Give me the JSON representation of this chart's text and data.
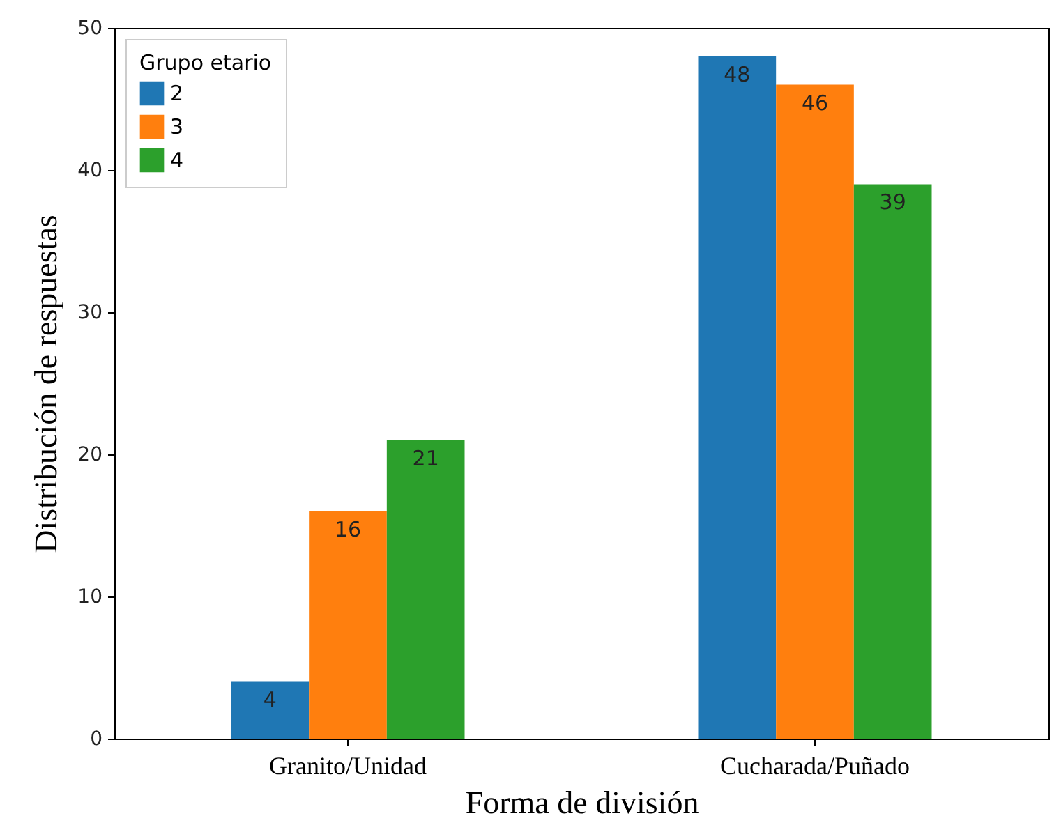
{
  "chart_data": {
    "type": "bar",
    "xlabel": "Forma de división",
    "ylabel": "Distribución de respuestas",
    "legend_title": "Grupo etario",
    "categories": [
      "Granito/Unidad",
      "Cucharada/Puñado"
    ],
    "series": [
      {
        "name": "2",
        "color": "#1f77b4",
        "values": [
          4,
          48
        ]
      },
      {
        "name": "3",
        "color": "#ff7f0e",
        "values": [
          16,
          46
        ]
      },
      {
        "name": "4",
        "color": "#2ca02c",
        "values": [
          21,
          39
        ]
      }
    ],
    "ylim": [
      0,
      50
    ],
    "yticks": [
      0,
      10,
      20,
      30,
      40,
      50
    ],
    "grid": false,
    "legend": "top left",
    "data_labels": true
  }
}
